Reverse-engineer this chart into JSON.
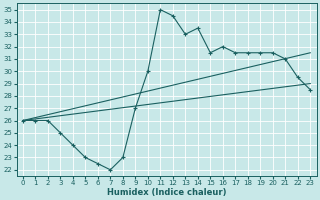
{
  "xlabel": "Humidex (Indice chaleur)",
  "bg_color": "#c8e8e8",
  "line_color": "#1a6060",
  "xlim": [
    -0.5,
    23.5
  ],
  "ylim": [
    21.5,
    35.5
  ],
  "xticks": [
    0,
    1,
    2,
    3,
    4,
    5,
    6,
    7,
    8,
    9,
    10,
    11,
    12,
    13,
    14,
    15,
    16,
    17,
    18,
    19,
    20,
    21,
    22,
    23
  ],
  "yticks": [
    22,
    23,
    24,
    25,
    26,
    27,
    28,
    29,
    30,
    31,
    32,
    33,
    34,
    35
  ],
  "line1_x": [
    0,
    1,
    2,
    3,
    4,
    5,
    6,
    7,
    8,
    9,
    10,
    11,
    12,
    13,
    14,
    15,
    16,
    17,
    18,
    19,
    20,
    21,
    22,
    23
  ],
  "line1_y": [
    26,
    26,
    26,
    25,
    24,
    23,
    22.5,
    22,
    23,
    27,
    30,
    35,
    34.5,
    33,
    33.5,
    31.5,
    32,
    31.5,
    31.5,
    31.5,
    31.5,
    31,
    29.5,
    28.5
  ],
  "line2_x": [
    0,
    23
  ],
  "line2_y": [
    26,
    29
  ],
  "line3_x": [
    0,
    23
  ],
  "line3_y": [
    26,
    31.5
  ]
}
